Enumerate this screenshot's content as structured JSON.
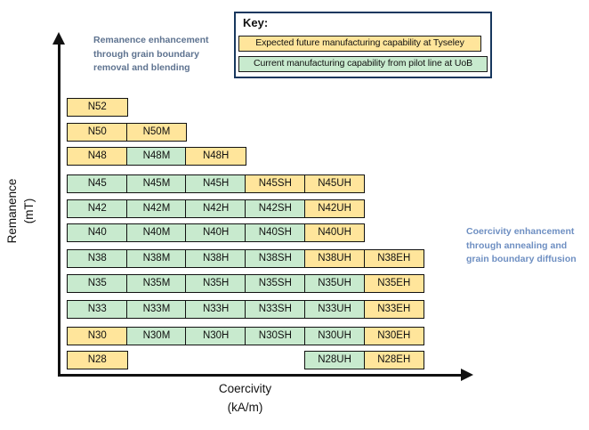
{
  "colors": {
    "future": "#FFE59B",
    "current": "#C8EACE",
    "cell_border": "#111111",
    "key_border": "#17375E"
  },
  "axes": {
    "y_label_line1": "Remanence",
    "y_label_line2": "(mT)",
    "x_label_line1": "Coercivity",
    "x_label_line2": "(kA/m)"
  },
  "annotations": {
    "left": {
      "text": "Remanence enhancement\nthrough grain boundary\nremoval and blending",
      "color": "#5E7390"
    },
    "right": {
      "text": "Coercivity enhancement\nthrough annealing and\ngrain boundary diffusion",
      "color": "#6E8FC2"
    }
  },
  "key": {
    "title": "Key:",
    "items": [
      {
        "label": "Expected future manufacturing capability at Tyseley",
        "status": "future"
      },
      {
        "label": "Current manufacturing capability from pilot line at UoB",
        "status": "current"
      }
    ]
  },
  "grid": {
    "columns": [
      "base",
      "M",
      "H",
      "SH",
      "UH",
      "EH"
    ],
    "status_meaning": {
      "future": "Expected future manufacturing capability at Tyseley",
      "current": "Current manufacturing capability from pilot line at UoB"
    },
    "rows": [
      {
        "grade": "N52",
        "cells": [
          {
            "label": "N52",
            "status": "future",
            "col": 0
          }
        ]
      },
      {
        "grade": "N50",
        "cells": [
          {
            "label": "N50",
            "status": "future",
            "col": 0
          },
          {
            "label": "N50M",
            "status": "future",
            "col": 1
          }
        ]
      },
      {
        "grade": "N48",
        "cells": [
          {
            "label": "N48",
            "status": "future",
            "col": 0
          },
          {
            "label": "N48M",
            "status": "current",
            "col": 1
          },
          {
            "label": "N48H",
            "status": "future",
            "col": 2
          }
        ]
      },
      {
        "grade": "N45",
        "cells": [
          {
            "label": "N45",
            "status": "current",
            "col": 0
          },
          {
            "label": "N45M",
            "status": "current",
            "col": 1
          },
          {
            "label": "N45H",
            "status": "current",
            "col": 2
          },
          {
            "label": "N45SH",
            "status": "future",
            "col": 3
          },
          {
            "label": "N45UH",
            "status": "future",
            "col": 4
          }
        ]
      },
      {
        "grade": "N42",
        "cells": [
          {
            "label": "N42",
            "status": "current",
            "col": 0
          },
          {
            "label": "N42M",
            "status": "current",
            "col": 1
          },
          {
            "label": "N42H",
            "status": "current",
            "col": 2
          },
          {
            "label": "N42SH",
            "status": "current",
            "col": 3
          },
          {
            "label": "N42UH",
            "status": "future",
            "col": 4
          }
        ]
      },
      {
        "grade": "N40",
        "cells": [
          {
            "label": "N40",
            "status": "current",
            "col": 0
          },
          {
            "label": "N40M",
            "status": "current",
            "col": 1
          },
          {
            "label": "N40H",
            "status": "current",
            "col": 2
          },
          {
            "label": "N40SH",
            "status": "current",
            "col": 3
          },
          {
            "label": "N40UH",
            "status": "future",
            "col": 4
          }
        ]
      },
      {
        "grade": "N38",
        "cells": [
          {
            "label": "N38",
            "status": "current",
            "col": 0
          },
          {
            "label": "N38M",
            "status": "current",
            "col": 1
          },
          {
            "label": "N38H",
            "status": "current",
            "col": 2
          },
          {
            "label": "N38SH",
            "status": "current",
            "col": 3
          },
          {
            "label": "N38UH",
            "status": "future",
            "col": 4
          },
          {
            "label": "N38EH",
            "status": "future",
            "col": 5
          }
        ]
      },
      {
        "grade": "N35",
        "cells": [
          {
            "label": "N35",
            "status": "current",
            "col": 0
          },
          {
            "label": "N35M",
            "status": "current",
            "col": 1
          },
          {
            "label": "N35H",
            "status": "current",
            "col": 2
          },
          {
            "label": "N35SH",
            "status": "current",
            "col": 3
          },
          {
            "label": "N35UH",
            "status": "current",
            "col": 4
          },
          {
            "label": "N35EH",
            "status": "future",
            "col": 5
          }
        ]
      },
      {
        "grade": "N33",
        "cells": [
          {
            "label": "N33",
            "status": "current",
            "col": 0
          },
          {
            "label": "N33M",
            "status": "current",
            "col": 1
          },
          {
            "label": "N33H",
            "status": "current",
            "col": 2
          },
          {
            "label": "N33SH",
            "status": "current",
            "col": 3
          },
          {
            "label": "N33UH",
            "status": "current",
            "col": 4
          },
          {
            "label": "N33EH",
            "status": "future",
            "col": 5
          }
        ]
      },
      {
        "grade": "N30",
        "cells": [
          {
            "label": "N30",
            "status": "future",
            "col": 0
          },
          {
            "label": "N30M",
            "status": "current",
            "col": 1
          },
          {
            "label": "N30H",
            "status": "current",
            "col": 2
          },
          {
            "label": "N30SH",
            "status": "current",
            "col": 3
          },
          {
            "label": "N30UH",
            "status": "current",
            "col": 4
          },
          {
            "label": "N30EH",
            "status": "future",
            "col": 5
          }
        ]
      },
      {
        "grade": "N28",
        "cells": [
          {
            "label": "N28",
            "status": "future",
            "col": 0
          },
          {
            "label": "N28UH",
            "status": "current",
            "col": 4
          },
          {
            "label": "N28EH",
            "status": "future",
            "col": 5
          }
        ]
      }
    ]
  }
}
